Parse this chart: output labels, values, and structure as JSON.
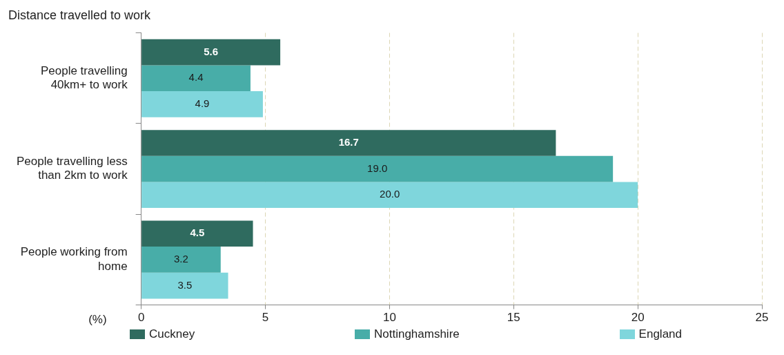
{
  "chart_data": {
    "type": "bar",
    "orientation": "horizontal",
    "title": "Distance travelled to work",
    "xlabel": "(%)",
    "categories": [
      "People travelling 40km+ to work",
      "People travelling less than 2km to work",
      "People working from home"
    ],
    "series": [
      {
        "name": "Cuckney",
        "color": "#2f6b5f",
        "values": [
          5.6,
          16.7,
          4.5
        ],
        "value_labels": [
          "5.6",
          "16.7",
          "4.5"
        ]
      },
      {
        "name": "Nottinghamshire",
        "color": "#48ada8",
        "values": [
          4.4,
          19.0,
          3.2
        ],
        "value_labels": [
          "4.4",
          "19.0",
          "3.2"
        ]
      },
      {
        "name": "England",
        "color": "#7fd6dc",
        "values": [
          4.9,
          20.0,
          3.5
        ],
        "value_labels": [
          "4.9",
          "20.0",
          "3.5"
        ]
      }
    ],
    "xlim": [
      0,
      25
    ],
    "xticks": [
      0,
      5,
      10,
      15,
      20,
      25
    ],
    "grid": "x",
    "legend": "bottom"
  }
}
